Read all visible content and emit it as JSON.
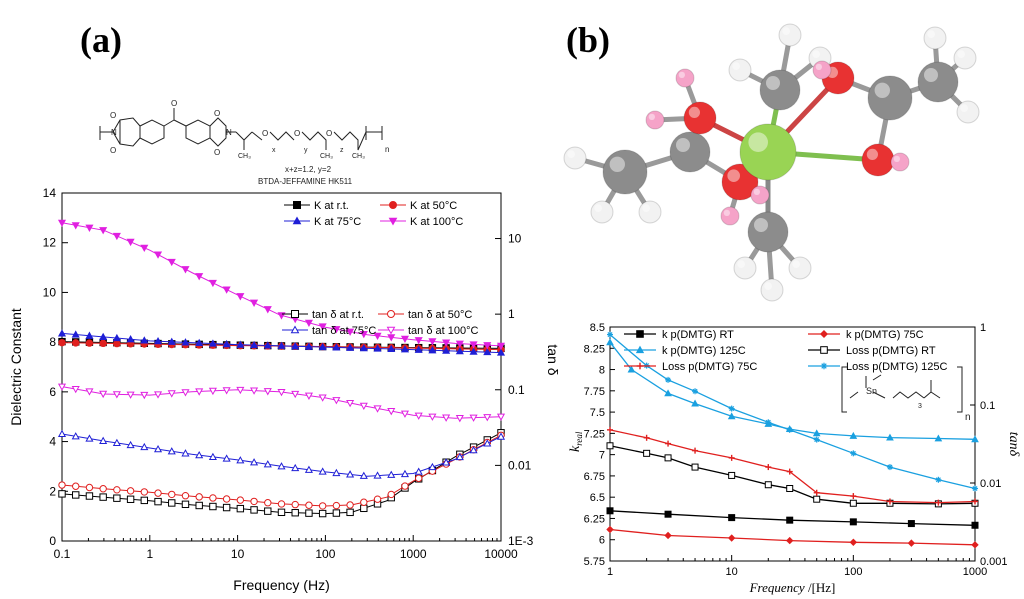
{
  "panel_labels": {
    "a": "(a)",
    "b": "(b)"
  },
  "structure_a": {
    "composition": "x+z=1.2, y=2",
    "name": "BTDA-JEFFAMINE HK511",
    "subscripts": {
      "x": "x",
      "y": "y",
      "z": "z",
      "n": "n"
    }
  },
  "structure_b": {
    "sn": "Sn",
    "sub3": "3",
    "n": "n"
  },
  "molecule": {
    "colors": {
      "tin": "#99d454",
      "oxygen": "#e83232",
      "carbon": "#8c8c8c",
      "hydrogen": "#f2f2f2",
      "hydroxyl_h": "#f5a3c8"
    }
  },
  "chart_data": [
    {
      "id": "a",
      "type": "line",
      "title": "",
      "xlabel": "Frequency (Hz)",
      "ylabel": "Dielectric Constant",
      "y2label": "tan δ",
      "xscale": "log",
      "xlim": [
        0.1,
        10000
      ],
      "ylim": [
        0,
        14
      ],
      "y2scale": "log",
      "y2lim": [
        0.001,
        40
      ],
      "x_ticks": [
        "0.1",
        "1",
        "10",
        "100",
        "1000",
        "10000"
      ],
      "y_ticks": [
        "0",
        "2",
        "4",
        "6",
        "8",
        "10",
        "12",
        "14"
      ],
      "y2_ticks": [
        "1E-3",
        "0.01",
        "0.1",
        "1",
        "10"
      ],
      "legend_top_position": "upper-right",
      "legend_bottom_position": "right-middle",
      "series": [
        {
          "name": "K at r.t.",
          "axis": "left",
          "color": "#000000",
          "marker": "square-filled",
          "group": "top",
          "x": [
            0.1,
            1,
            10,
            100,
            1000,
            10000
          ],
          "y": [
            8.02,
            7.95,
            7.88,
            7.82,
            7.78,
            7.75
          ]
        },
        {
          "name": "K at 50°C",
          "axis": "left",
          "color": "#e0201f",
          "marker": "circle-filled",
          "group": "top",
          "x": [
            0.1,
            1,
            10,
            100,
            1000,
            10000
          ],
          "y": [
            7.98,
            7.92,
            7.86,
            7.82,
            7.76,
            7.7
          ]
        },
        {
          "name": "K at 75°C",
          "axis": "left",
          "color": "#1f1fd6",
          "marker": "triangle-up-filled",
          "group": "top",
          "x": [
            0.1,
            1,
            10,
            100,
            1000,
            10000
          ],
          "y": [
            8.35,
            8.05,
            7.9,
            7.8,
            7.7,
            7.58
          ]
        },
        {
          "name": "K at 100°C",
          "axis": "left",
          "color": "#e020e0",
          "marker": "triangle-down-filled",
          "group": "top",
          "x": [
            0.1,
            0.3,
            1,
            3,
            10,
            30,
            100,
            300,
            1000,
            3000,
            10000
          ],
          "y": [
            12.8,
            12.5,
            11.7,
            10.8,
            9.9,
            9.1,
            8.6,
            8.3,
            8.1,
            7.95,
            7.85
          ]
        },
        {
          "name": "tan δ at r.t.",
          "axis": "right",
          "color": "#000000",
          "marker": "square-open",
          "group": "bottom",
          "x": [
            0.1,
            0.3,
            1,
            3,
            10,
            30,
            100,
            200,
            500,
            1000,
            3000,
            10000
          ],
          "y": [
            0.0042,
            0.0038,
            0.0034,
            0.003,
            0.0027,
            0.0024,
            0.0023,
            0.0024,
            0.0034,
            0.006,
            0.013,
            0.027
          ]
        },
        {
          "name": "tan δ at 50°C",
          "axis": "right",
          "color": "#e0201f",
          "marker": "circle-open",
          "group": "bottom",
          "x": [
            0.1,
            0.3,
            1,
            3,
            10,
            30,
            100,
            200,
            500,
            1000,
            3000,
            10000
          ],
          "y": [
            0.0055,
            0.0049,
            0.0044,
            0.0039,
            0.0035,
            0.0031,
            0.0029,
            0.003,
            0.0038,
            0.0062,
            0.012,
            0.025
          ]
        },
        {
          "name": "tan δ at 75°C",
          "axis": "right",
          "color": "#1f1fd6",
          "marker": "triangle-up-open",
          "group": "bottom",
          "x": [
            0.1,
            0.3,
            1,
            3,
            10,
            30,
            100,
            300,
            1000,
            3000,
            10000
          ],
          "y": [
            0.026,
            0.021,
            0.017,
            0.014,
            0.0118,
            0.0098,
            0.0082,
            0.0072,
            0.0078,
            0.012,
            0.024
          ]
        },
        {
          "name": "tan δ at 100°C",
          "axis": "right",
          "color": "#e020e0",
          "marker": "triangle-down-open",
          "group": "bottom",
          "x": [
            0.1,
            0.3,
            1,
            3,
            10,
            30,
            100,
            300,
            1000,
            3000,
            10000
          ],
          "y": [
            0.11,
            0.088,
            0.085,
            0.094,
            0.1,
            0.094,
            0.078,
            0.06,
            0.046,
            0.042,
            0.044
          ]
        }
      ]
    },
    {
      "id": "b",
      "type": "line",
      "title": "",
      "xlabel_italic": "Frequency",
      "xlabel_unit": " /[Hz]",
      "ylabel_main": "k",
      "ylabel_sub": "real",
      "y2label": "tanδ",
      "xscale": "log",
      "xlim": [
        1,
        1000
      ],
      "ylim": [
        5.75,
        8.5
      ],
      "y2scale": "log",
      "y2lim": [
        0.001,
        1
      ],
      "x_ticks": [
        "1",
        "10",
        "100",
        "1000"
      ],
      "y_ticks": [
        "5.75",
        "6",
        "6.25",
        "6.5",
        "6.75",
        "7",
        "7.25",
        "7.5",
        "7.75",
        "8",
        "8.25",
        "8.5"
      ],
      "y2_ticks": [
        "0.001",
        "0.01",
        "0.1",
        "1"
      ],
      "legend_position": "top",
      "series": [
        {
          "name": "k p(DMTG) RT",
          "axis": "left",
          "color": "#000000",
          "marker": "square-filled",
          "x": [
            1,
            3,
            10,
            30,
            100,
            300,
            1000
          ],
          "y": [
            6.34,
            6.3,
            6.26,
            6.23,
            6.21,
            6.19,
            6.17
          ]
        },
        {
          "name": "k p(DMTG) 75C",
          "axis": "left",
          "color": "#e0201f",
          "marker": "diamond-filled",
          "x": [
            1,
            3,
            10,
            30,
            100,
            300,
            1000
          ],
          "y": [
            6.12,
            6.05,
            6.02,
            5.99,
            5.97,
            5.96,
            5.94
          ]
        },
        {
          "name": "k p(DMTG) 125C",
          "axis": "left",
          "color": "#1aa0e0",
          "marker": "triangle-filled",
          "x": [
            1,
            1.5,
            3,
            5,
            10,
            20,
            30,
            50,
            100,
            200,
            500,
            1000
          ],
          "y": [
            8.32,
            8.0,
            7.72,
            7.6,
            7.45,
            7.36,
            7.3,
            7.25,
            7.22,
            7.2,
            7.19,
            7.18
          ]
        },
        {
          "name": "Loss p(DMTG) RT",
          "axis": "right",
          "color": "#000000",
          "marker": "square-open",
          "x": [
            1,
            2,
            3,
            5,
            10,
            20,
            30,
            50,
            100,
            200,
            500,
            1000
          ],
          "y": [
            0.03,
            0.024,
            0.021,
            0.016,
            0.0125,
            0.0095,
            0.0085,
            0.0062,
            0.0055,
            0.0055,
            0.0054,
            0.0055
          ]
        },
        {
          "name": "Loss p(DMTG) 75C",
          "axis": "right",
          "color": "#e0201f",
          "marker": "plus",
          "x": [
            1,
            2,
            3,
            5,
            10,
            20,
            30,
            50,
            100,
            200,
            500,
            1000
          ],
          "y": [
            0.048,
            0.038,
            0.032,
            0.026,
            0.021,
            0.016,
            0.014,
            0.0075,
            0.0068,
            0.0058,
            0.0056,
            0.0058
          ]
        },
        {
          "name": "Loss p(DMTG) 125C",
          "axis": "right",
          "color": "#1aa0e0",
          "marker": "star",
          "x": [
            1,
            2,
            3,
            5,
            10,
            20,
            30,
            50,
            100,
            200,
            500,
            1000
          ],
          "y": [
            0.8,
            0.32,
            0.21,
            0.15,
            0.09,
            0.06,
            0.048,
            0.036,
            0.024,
            0.016,
            0.011,
            0.0085
          ]
        }
      ]
    }
  ]
}
